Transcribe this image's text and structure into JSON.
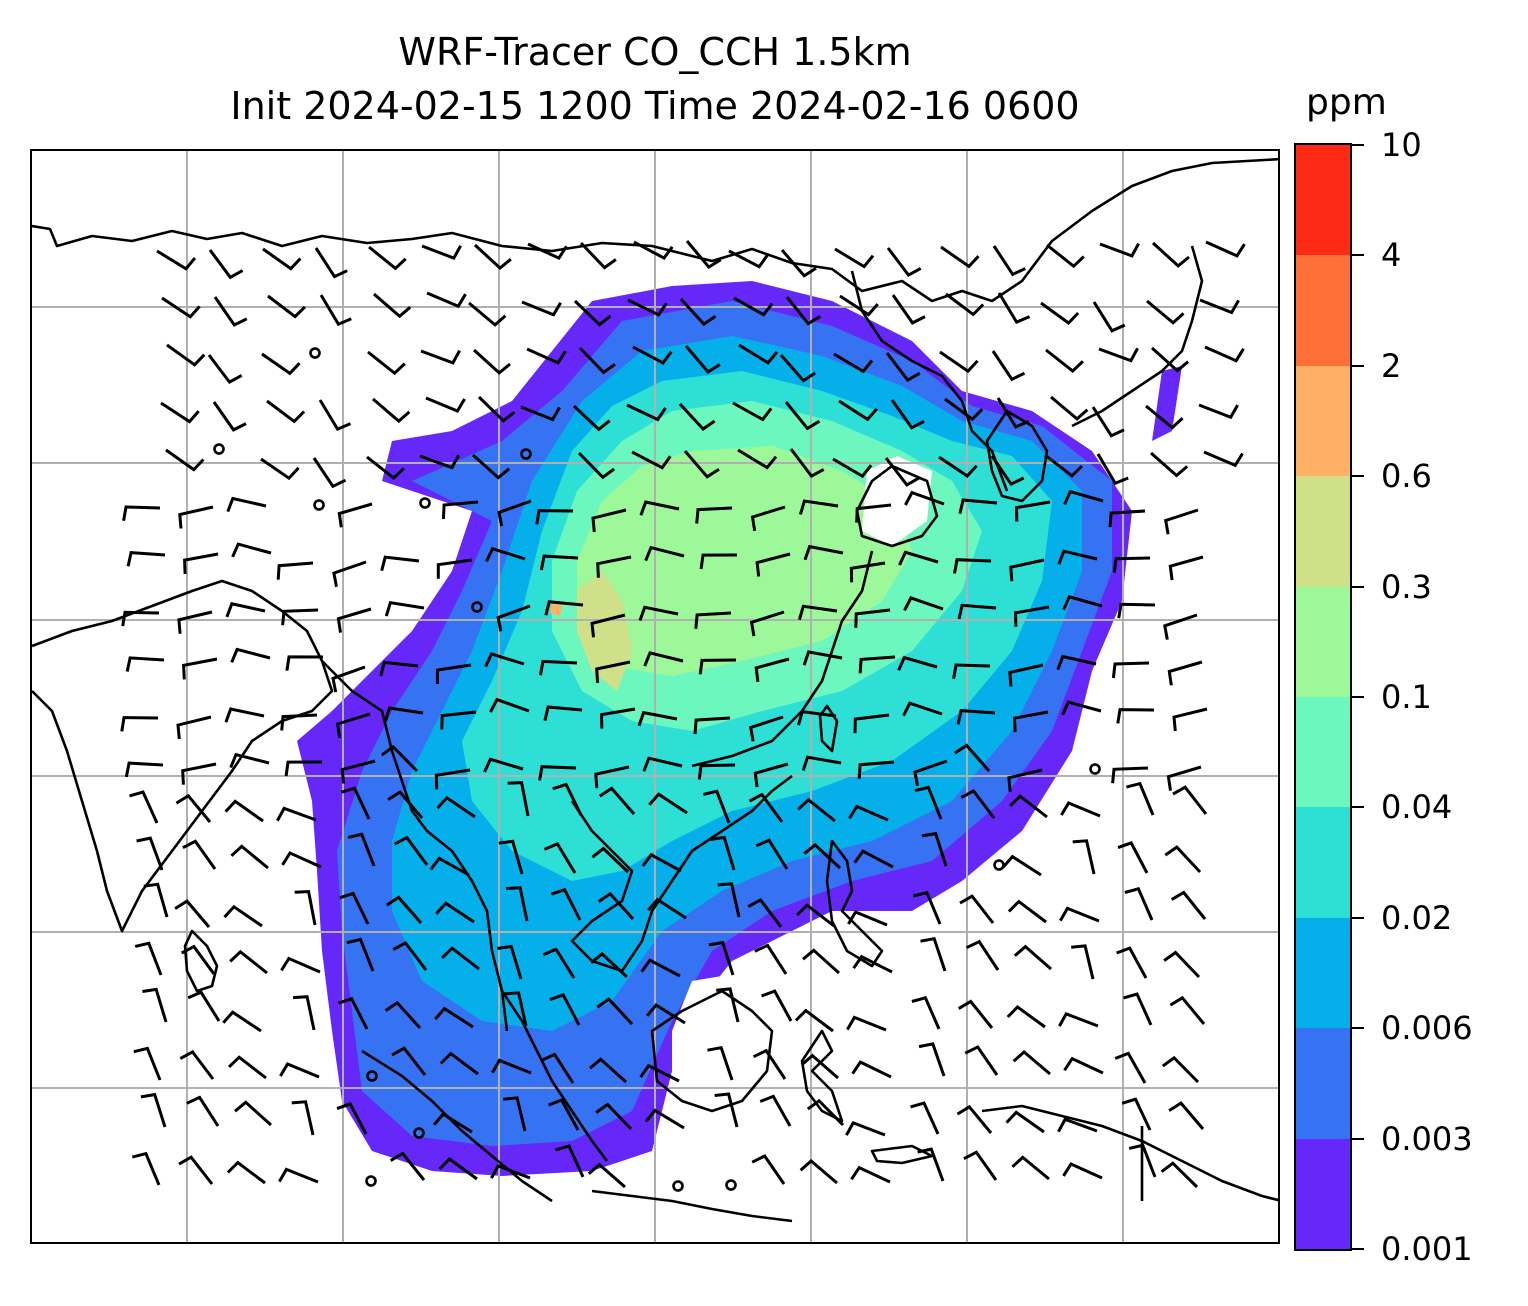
{
  "title": {
    "line1": "WRF-Tracer CO_CCH 1.5km",
    "line2": "Init 2024-02-15 1200 Time 2024-02-16 0600"
  },
  "colorbar": {
    "unit": "ppm",
    "levels": [
      "0.001",
      "0.003",
      "0.006",
      "0.02",
      "0.04",
      "0.1",
      "0.3",
      "0.6",
      "2",
      "4",
      "10"
    ],
    "colors": [
      "#6628f8",
      "#3573f2",
      "#05b0ea",
      "#2ddfd4",
      "#6cf7bf",
      "#9df89a",
      "#d0e089",
      "#feb064",
      "#ff7038",
      "#ff2a15"
    ]
  },
  "map": {
    "gridlines": true,
    "gridline_color": "#b0b0b0",
    "coastline_color": "#000000",
    "wind_barb_color": "#000000"
  }
}
